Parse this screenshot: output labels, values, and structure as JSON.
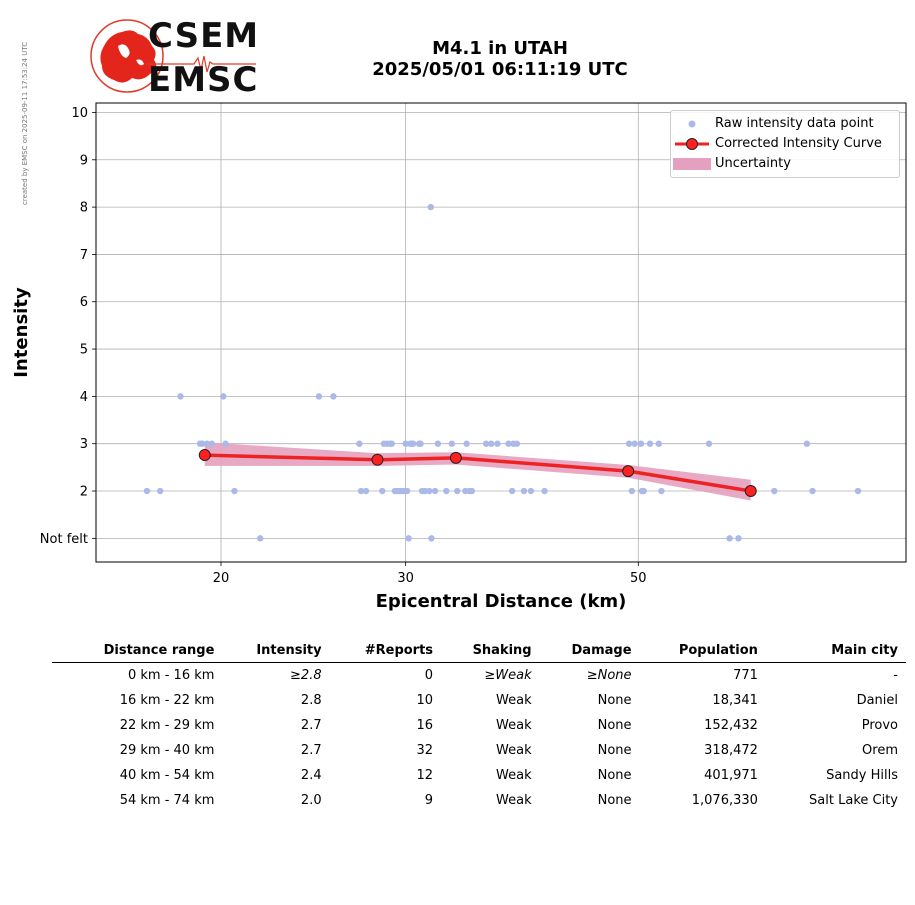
{
  "credit": "created by EMSC on 2025-09-11 17:53:24 UTC",
  "logo": {
    "top": "CSEM",
    "bottom": "EMSC"
  },
  "title": {
    "line1": "M4.1 in UTAH",
    "line2": "2025/05/01 06:11:19 UTC"
  },
  "chart_data": {
    "type": "scatter",
    "xlabel": "Epicentral Distance (km)",
    "ylabel": "Intensity",
    "x_scale": "log",
    "x_ticks": [
      20,
      30,
      50
    ],
    "xlim": [
      15.2,
      90
    ],
    "ylim": [
      0.5,
      10.2
    ],
    "y_ticks": [
      {
        "value": 1,
        "label": "Not felt"
      },
      {
        "value": 2,
        "label": "2"
      },
      {
        "value": 3,
        "label": "3"
      },
      {
        "value": 4,
        "label": "4"
      },
      {
        "value": 5,
        "label": "5"
      },
      {
        "value": 6,
        "label": "6"
      },
      {
        "value": 7,
        "label": "7"
      },
      {
        "value": 8,
        "label": "8"
      },
      {
        "value": 9,
        "label": "9"
      },
      {
        "value": 10,
        "label": "10"
      }
    ],
    "grid": true,
    "legend_position": "top-right",
    "legend": [
      "Raw intensity data point",
      "Corrected Intensity Curve",
      "Uncertainty"
    ],
    "colors": {
      "raw": "#aab9e8",
      "curve": "#ee2222",
      "marker": "#ff2020",
      "band": "#e6a0bf"
    },
    "raw_points": [
      [
        17.0,
        2
      ],
      [
        17.5,
        2
      ],
      [
        18.3,
        4
      ],
      [
        19.1,
        3
      ],
      [
        19.2,
        3
      ],
      [
        19.4,
        3
      ],
      [
        19.6,
        3
      ],
      [
        20.1,
        4
      ],
      [
        20.2,
        3
      ],
      [
        20.6,
        2
      ],
      [
        21.8,
        1
      ],
      [
        24.8,
        4
      ],
      [
        25.6,
        4
      ],
      [
        27.1,
        3
      ],
      [
        27.2,
        2
      ],
      [
        27.5,
        2
      ],
      [
        28.5,
        2
      ],
      [
        28.6,
        3
      ],
      [
        28.8,
        3
      ],
      [
        29.0,
        3
      ],
      [
        29.1,
        3
      ],
      [
        29.3,
        2
      ],
      [
        29.45,
        2
      ],
      [
        29.6,
        2
      ],
      [
        29.75,
        2
      ],
      [
        29.9,
        2
      ],
      [
        30.1,
        2
      ],
      [
        30.0,
        3
      ],
      [
        30.2,
        1
      ],
      [
        30.3,
        3
      ],
      [
        30.4,
        3
      ],
      [
        30.5,
        3
      ],
      [
        30.9,
        3
      ],
      [
        31.0,
        3
      ],
      [
        31.1,
        2
      ],
      [
        31.3,
        2
      ],
      [
        31.6,
        2
      ],
      [
        31.7,
        8
      ],
      [
        31.75,
        1
      ],
      [
        32.0,
        2
      ],
      [
        32.2,
        3
      ],
      [
        32.8,
        2
      ],
      [
        33.2,
        3
      ],
      [
        33.6,
        2
      ],
      [
        34.2,
        2
      ],
      [
        34.3,
        3
      ],
      [
        34.5,
        2
      ],
      [
        34.7,
        2
      ],
      [
        35.8,
        3
      ],
      [
        36.2,
        3
      ],
      [
        36.7,
        3
      ],
      [
        37.6,
        3
      ],
      [
        37.9,
        2
      ],
      [
        38.0,
        3
      ],
      [
        38.3,
        3
      ],
      [
        38.9,
        2
      ],
      [
        39.5,
        2
      ],
      [
        40.7,
        2
      ],
      [
        49.0,
        3
      ],
      [
        49.3,
        2
      ],
      [
        49.6,
        3
      ],
      [
        50.3,
        3
      ],
      [
        50.4,
        2
      ],
      [
        50.6,
        2
      ],
      [
        51.3,
        3
      ],
      [
        52.3,
        3
      ],
      [
        52.6,
        2
      ],
      [
        58.4,
        3
      ],
      [
        61.1,
        1
      ],
      [
        62.3,
        1
      ],
      [
        64.1,
        2
      ],
      [
        67.4,
        2
      ],
      [
        72.4,
        3
      ],
      [
        73.3,
        2
      ],
      [
        81.0,
        2
      ]
    ],
    "curve": {
      "x": [
        19.3,
        28.2,
        33.5,
        48.9,
        64.0
      ],
      "y": [
        2.76,
        2.66,
        2.7,
        2.42,
        2.0
      ],
      "lower": [
        2.53,
        2.53,
        2.56,
        2.28,
        1.8
      ],
      "upper": [
        3.03,
        2.8,
        2.82,
        2.55,
        2.24
      ]
    }
  },
  "table": {
    "headers": [
      "Distance range",
      "Intensity",
      "#Reports",
      "Shaking",
      "Damage",
      "Population",
      "Main city"
    ],
    "rows": [
      {
        "range": "0 km -   16 km",
        "intensity": "≥2.8",
        "reports": "0",
        "shaking": "≥Weak",
        "damage": "≥None",
        "population": "771",
        "city": "-"
      },
      {
        "range": "16 km -   22 km",
        "intensity": "2.8",
        "reports": "10",
        "shaking": "Weak",
        "damage": "None",
        "population": "18,341",
        "city": "Daniel"
      },
      {
        "range": "22 km -   29 km",
        "intensity": "2.7",
        "reports": "16",
        "shaking": "Weak",
        "damage": "None",
        "population": "152,432",
        "city": "Provo"
      },
      {
        "range": "29 km -   40 km",
        "intensity": "2.7",
        "reports": "32",
        "shaking": "Weak",
        "damage": "None",
        "population": "318,472",
        "city": "Orem"
      },
      {
        "range": "40 km -   54 km",
        "intensity": "2.4",
        "reports": "12",
        "shaking": "Weak",
        "damage": "None",
        "population": "401,971",
        "city": "Sandy Hills"
      },
      {
        "range": "54 km -   74 km",
        "intensity": "2.0",
        "reports": "9",
        "shaking": "Weak",
        "damage": "None",
        "population": "1,076,330",
        "city": "Salt Lake City"
      }
    ]
  }
}
